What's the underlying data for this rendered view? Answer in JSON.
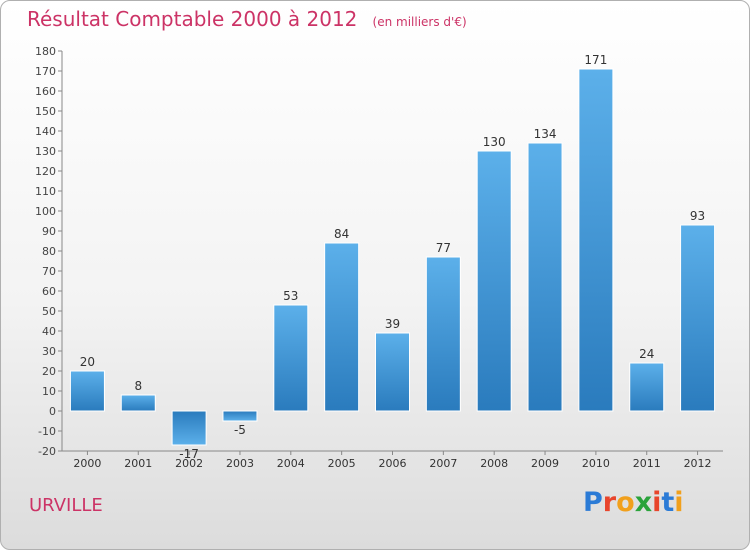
{
  "header": {
    "title": "Résultat Comptable 2000 à 2012",
    "unit": "(en milliers d'€)"
  },
  "commune": {
    "name": "URVILLE"
  },
  "logo": {
    "text": "Proxiti",
    "letter_colors": [
      "#2b7bd6",
      "#e8452c",
      "#f1a01c",
      "#2aa33b",
      "#e8452c",
      "#2b7bd6",
      "#f1a01c"
    ]
  },
  "colors": {
    "title": "#cc3366",
    "bar_light": "#5cb0ea",
    "bar_dark": "#2a7bbd"
  },
  "chart_data": {
    "type": "bar",
    "title": "Résultat Comptable 2000 à 2012",
    "ylabel": "(en milliers d'€)",
    "categories": [
      "2000",
      "2001",
      "2002",
      "2003",
      "2004",
      "2005",
      "2006",
      "2007",
      "2008",
      "2009",
      "2010",
      "2011",
      "2012"
    ],
    "values": [
      20,
      8,
      -17,
      -5,
      53,
      84,
      39,
      77,
      130,
      134,
      171,
      24,
      93
    ],
    "ylim": [
      -20,
      180
    ],
    "yticks": [
      -20,
      -10,
      0,
      10,
      20,
      30,
      40,
      50,
      60,
      70,
      80,
      90,
      100,
      110,
      120,
      130,
      140,
      150,
      160,
      170,
      180
    ],
    "grid": false
  }
}
